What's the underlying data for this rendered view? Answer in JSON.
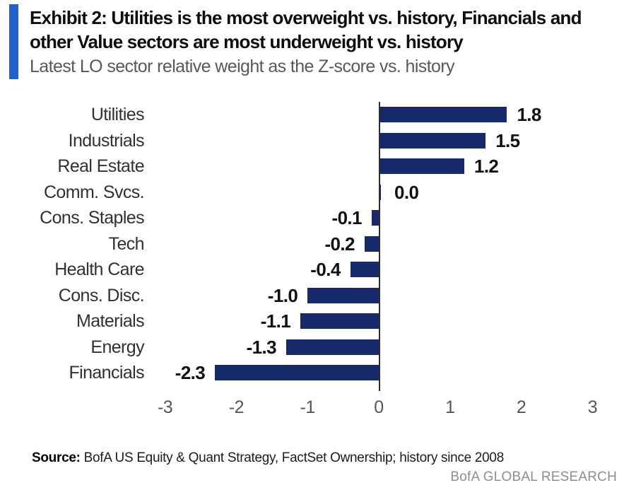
{
  "colors": {
    "accent_bar": "#1f62cf",
    "bar_navy": "#16296b",
    "axis_line": "#2e2e2e"
  },
  "header": {
    "exhibit_title": "Exhibit 2: Utilities is the most overweight vs. history, Financials and other Value sectors are most underweight vs. history",
    "subtitle": "Latest LO sector relative weight as the Z-score vs. history"
  },
  "chart_data": {
    "type": "bar",
    "orientation": "horizontal",
    "title": "Exhibit 2: Utilities is the most overweight vs. history, Financials and other Value sectors are most underweight vs. history",
    "subtitle": "Latest LO sector relative weight as the Z-score vs. history",
    "categories": [
      "Utilities",
      "Industrials",
      "Real Estate",
      "Comm. Svcs.",
      "Cons. Staples",
      "Tech",
      "Health Care",
      "Cons. Disc.",
      "Materials",
      "Energy",
      "Financials"
    ],
    "values": [
      1.8,
      1.5,
      1.2,
      0.0,
      -0.1,
      -0.2,
      -0.4,
      -1.0,
      -1.1,
      -1.3,
      -2.3
    ],
    "value_labels": [
      "1.8",
      "1.5",
      "1.2",
      "0.0",
      "-0.1",
      "-0.2",
      "-0.4",
      "-1.0",
      "-1.1",
      "-1.3",
      "-2.3"
    ],
    "xlim": [
      -3,
      3
    ],
    "x_ticks": [
      "-3",
      "-2",
      "-1",
      "0",
      "1",
      "2",
      "3"
    ],
    "grid": false,
    "legend": "none",
    "bar_color": "#16296b"
  },
  "footer": {
    "source_label": "Source:",
    "source_text": " BofA US Equity & Quant Strategy, FactSet Ownership; history since 2008",
    "brand": "BofA GLOBAL RESEARCH"
  }
}
